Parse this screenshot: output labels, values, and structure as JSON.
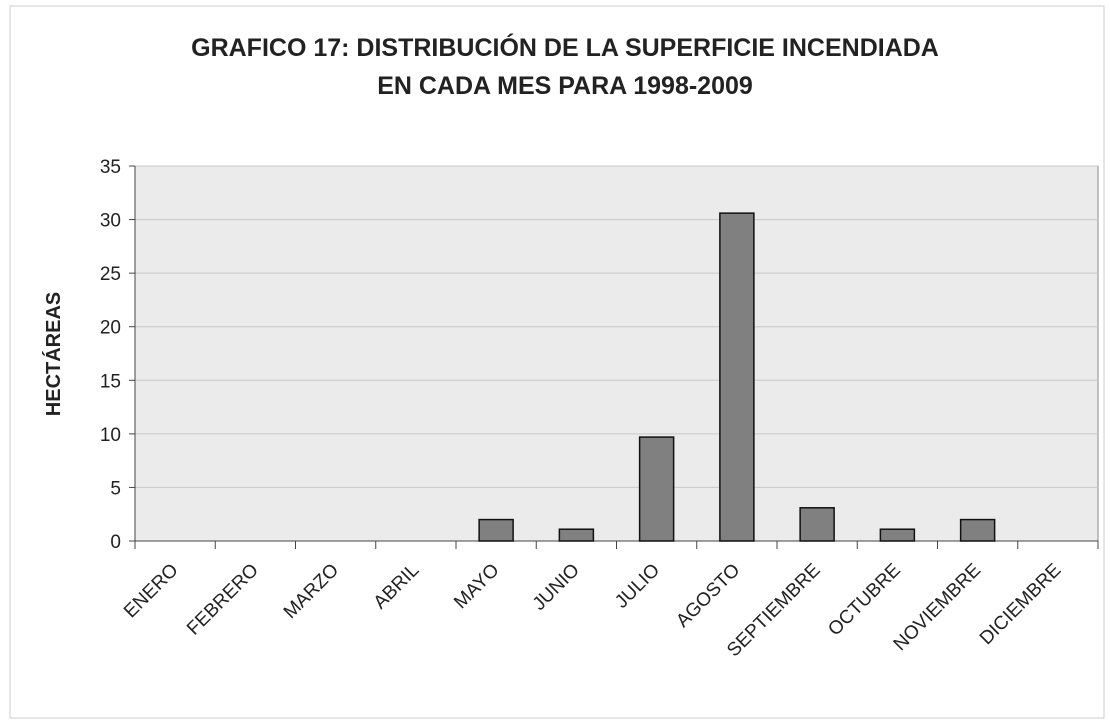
{
  "chart_data": {
    "type": "bar",
    "title": [
      "GRAFICO 17: DISTRIBUCIÓN DE LA SUPERFICIE INCENDIADA",
      "EN CADA MES PARA 1998-2009"
    ],
    "ylabel": "HECTÁREAS",
    "categories": [
      "ENERO",
      "FEBRERO",
      "MARZO",
      "ABRIL",
      "MAYO",
      "JUNIO",
      "JULIO",
      "AGOSTO",
      "SEPTIEMBRE",
      "OCTUBRE",
      "NOVIEMBRE",
      "DICIEMBRE"
    ],
    "values": [
      0,
      0,
      0,
      0,
      2,
      1.1,
      9.7,
      30.6,
      3.1,
      1.1,
      2,
      0
    ],
    "color": "#808080",
    "ylim": [
      0,
      35
    ],
    "yticks": [
      0,
      5,
      10,
      15,
      20,
      25,
      30,
      35
    ],
    "grid": true
  }
}
